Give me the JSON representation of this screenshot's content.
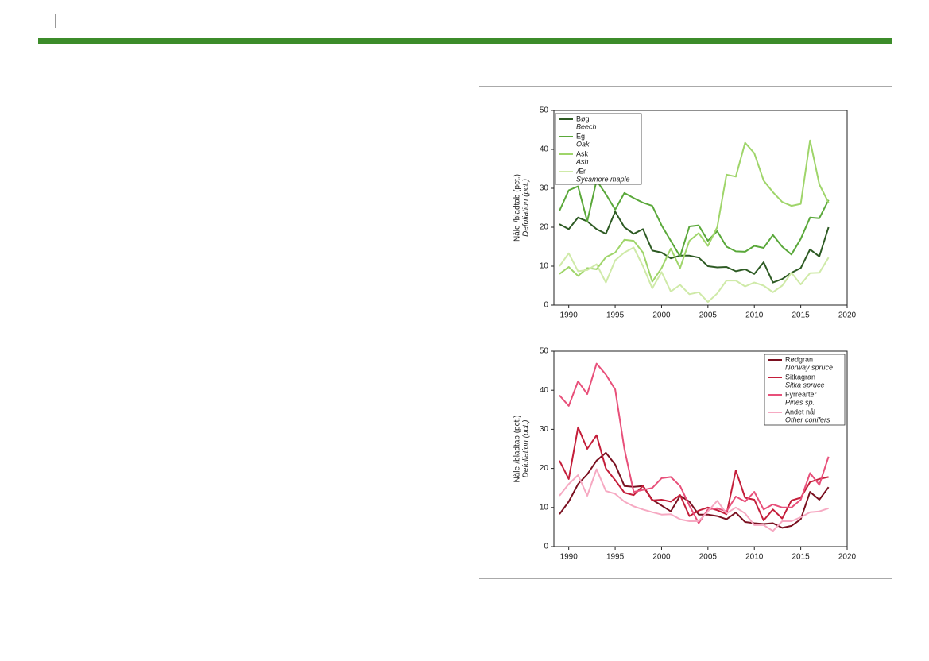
{
  "chart_data": [
    {
      "type": "line",
      "y_label": "Nåle-/bladtab (pct.)",
      "y_label_en": "Defoliation (pct.)",
      "x": [
        1989,
        1990,
        1991,
        1992,
        1993,
        1994,
        1995,
        1996,
        1997,
        1998,
        1999,
        2000,
        2001,
        2002,
        2003,
        2004,
        2005,
        2006,
        2007,
        2008,
        2009,
        2010,
        2011,
        2012,
        2013,
        2014,
        2015,
        2016,
        2017,
        2018
      ],
      "xlim": [
        1988.4,
        2020
      ],
      "xticks": [
        1990,
        1995,
        2000,
        2005,
        2010,
        2015,
        2020
      ],
      "ylim": [
        0,
        50
      ],
      "yticks": [
        0,
        10,
        20,
        30,
        40,
        50
      ],
      "legend": "upper left",
      "series": [
        {
          "name": "Bøg",
          "name_en": "Beech",
          "color": "#2e5b24",
          "values": [
            20.8,
            19.5,
            22.5,
            21.5,
            19.5,
            18.3,
            24,
            20,
            18.3,
            19.5,
            14,
            13.5,
            12,
            12.7,
            12.7,
            12.2,
            10,
            9.7,
            9.8,
            8.7,
            9.2,
            8,
            11,
            5.8,
            6.7,
            8.3,
            9.5,
            14.3,
            12.5,
            20
          ]
        },
        {
          "name": "Eg",
          "name_en": "Oak",
          "color": "#5aa83a",
          "values": [
            24.2,
            29.5,
            30.5,
            21.5,
            32,
            28.5,
            24.5,
            28.8,
            27.5,
            26.3,
            25.5,
            20.5,
            16.5,
            12.5,
            20.2,
            20.5,
            16.5,
            19,
            15,
            13.8,
            13.7,
            15.2,
            14.7,
            18,
            15,
            13,
            17,
            22.5,
            22.3,
            27
          ]
        },
        {
          "name": "Ask",
          "name_en": "Ash",
          "color": "#9fd56a",
          "values": [
            8,
            9.8,
            7.5,
            9.5,
            9.2,
            12.3,
            13.5,
            16.8,
            16.5,
            13.5,
            6,
            9.5,
            14.5,
            9.5,
            16.5,
            18.5,
            15.2,
            20,
            33.5,
            33,
            41.7,
            39,
            32,
            29,
            26.5,
            25.5,
            26,
            42.3,
            31,
            26.3
          ]
        },
        {
          "name": "Ær",
          "name_en": "Sycamore maple",
          "color": "#cfeaa8",
          "values": [
            10,
            13.3,
            8.7,
            9,
            10.5,
            5.8,
            11.5,
            13.5,
            14.8,
            10,
            4.3,
            8.5,
            3.5,
            5.2,
            2.8,
            3.3,
            0.8,
            3,
            6.3,
            6.3,
            4.8,
            5.8,
            5,
            3.3,
            5,
            8.3,
            5.3,
            8.2,
            8.3,
            12.2
          ]
        }
      ]
    },
    {
      "type": "line",
      "y_label": "Nåle-/bladtab (pct.)",
      "y_label_en": "Defoliation (pct.)",
      "x": [
        1989,
        1990,
        1991,
        1992,
        1993,
        1994,
        1995,
        1996,
        1997,
        1998,
        1999,
        2000,
        2001,
        2002,
        2003,
        2004,
        2005,
        2006,
        2007,
        2008,
        2009,
        2010,
        2011,
        2012,
        2013,
        2014,
        2015,
        2016,
        2017,
        2018
      ],
      "xlim": [
        1988.4,
        2020
      ],
      "xticks": [
        1990,
        1995,
        2000,
        2005,
        2010,
        2015,
        2020
      ],
      "ylim": [
        0,
        50
      ],
      "yticks": [
        0,
        10,
        20,
        30,
        40,
        50
      ],
      "legend": "upper right",
      "series": [
        {
          "name": "Rødgran",
          "name_en": "Norway spruce",
          "color": "#7a1020",
          "values": [
            8.3,
            11.5,
            16,
            18.5,
            22,
            24,
            21,
            15.5,
            15.3,
            15.5,
            12,
            10.5,
            9,
            13,
            11.5,
            8.2,
            8.2,
            7.8,
            7,
            8.7,
            6.3,
            6,
            5.8,
            6,
            4.8,
            5.3,
            7,
            14,
            12,
            15.2
          ]
        },
        {
          "name": "Sitkagran",
          "name_en": "Sitka spruce",
          "color": "#c41e3a",
          "values": [
            22,
            17.3,
            30.5,
            25,
            28.5,
            20,
            17,
            13.8,
            13.2,
            15.5,
            11.8,
            12,
            11.5,
            13.2,
            7.8,
            9.2,
            10,
            9.3,
            8.3,
            19.5,
            12.5,
            12,
            6.7,
            9.5,
            7.2,
            11.8,
            12.5,
            16.5,
            17.3,
            17.8
          ]
        },
        {
          "name": "Fyrrearter",
          "name_en": "Pines sp.",
          "color": "#e8507a",
          "values": [
            38.7,
            36,
            42.3,
            39,
            46.8,
            44,
            40.2,
            25,
            14,
            14.5,
            15,
            17.5,
            17.8,
            15.5,
            10.5,
            6,
            9.5,
            9.8,
            9,
            12.8,
            11.5,
            14,
            9.5,
            10.8,
            10,
            10,
            12,
            18.8,
            15.8,
            23
          ]
        },
        {
          "name": "Andet nål",
          "name_en": "Other conifers",
          "color": "#f6a9c2",
          "values": [
            13,
            16,
            18.3,
            13,
            19.8,
            14.2,
            13.5,
            11.5,
            10.3,
            9.5,
            8.8,
            8.2,
            8.3,
            7,
            6.5,
            6.5,
            9,
            11.7,
            8.5,
            10,
            8.5,
            5.5,
            5.5,
            4,
            6.5,
            6.5,
            7.5,
            8.8,
            9,
            9.8
          ]
        }
      ]
    }
  ]
}
